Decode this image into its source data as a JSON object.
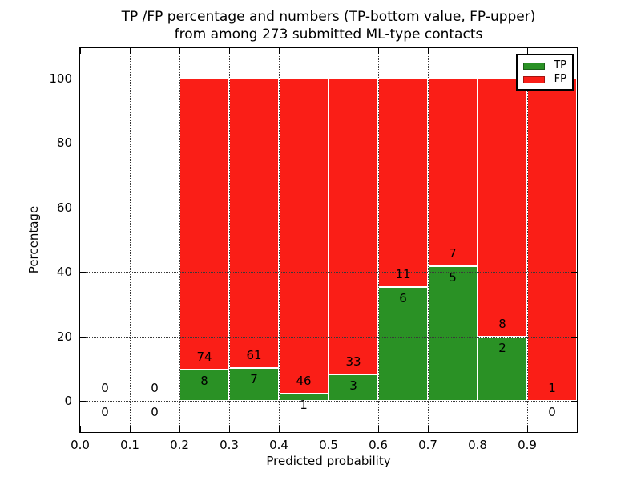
{
  "chart_data": {
    "type": "bar",
    "stacked": true,
    "title_line1": "TP /FP percentage and numbers (TP-bottom value, FP-upper)",
    "title_line2": "from among 273 submitted ML-type contacts",
    "xlabel": "Predicted probability",
    "ylabel": "Percentage",
    "xlim": [
      0.0,
      1.0
    ],
    "ylim": [
      -10,
      110
    ],
    "x_tick_values": [
      0.0,
      0.1,
      0.2,
      0.3,
      0.4,
      0.5,
      0.6,
      0.7,
      0.8,
      0.9
    ],
    "x_tick_labels": [
      "0.0",
      "0.1",
      "0.2",
      "0.3",
      "0.4",
      "0.5",
      "0.6",
      "0.7",
      "0.8",
      "0.9"
    ],
    "y_tick_values": [
      0,
      20,
      40,
      60,
      80,
      100
    ],
    "y_tick_labels": [
      "0",
      "20",
      "40",
      "60",
      "80",
      "100"
    ],
    "grid": "dotted",
    "colors": {
      "tp": "#2a9125",
      "fp": "#fa1e17",
      "bar_edge": "#ffffff"
    },
    "legend": {
      "position": "upper right",
      "items": [
        {
          "label": "TP",
          "color": "#2a9125"
        },
        {
          "label": "FP",
          "color": "#fa1e17"
        }
      ]
    },
    "bins": [
      {
        "x_start": 0.0,
        "x_end": 0.1,
        "tp_count": 0,
        "fp_count": 0,
        "tp_pct": 0,
        "fp_pct": 0,
        "has_bar": false
      },
      {
        "x_start": 0.1,
        "x_end": 0.2,
        "tp_count": 0,
        "fp_count": 0,
        "tp_pct": 0,
        "fp_pct": 0,
        "has_bar": false
      },
      {
        "x_start": 0.2,
        "x_end": 0.3,
        "tp_count": 8,
        "fp_count": 74,
        "tp_pct": 9.76,
        "fp_pct": 90.24,
        "has_bar": true
      },
      {
        "x_start": 0.3,
        "x_end": 0.4,
        "tp_count": 7,
        "fp_count": 61,
        "tp_pct": 10.29,
        "fp_pct": 89.71,
        "has_bar": true
      },
      {
        "x_start": 0.4,
        "x_end": 0.5,
        "tp_count": 1,
        "fp_count": 46,
        "tp_pct": 2.13,
        "fp_pct": 97.87,
        "has_bar": true
      },
      {
        "x_start": 0.5,
        "x_end": 0.6,
        "tp_count": 3,
        "fp_count": 33,
        "tp_pct": 8.33,
        "fp_pct": 91.67,
        "has_bar": true
      },
      {
        "x_start": 0.6,
        "x_end": 0.7,
        "tp_count": 6,
        "fp_count": 11,
        "tp_pct": 35.29,
        "fp_pct": 64.71,
        "has_bar": true
      },
      {
        "x_start": 0.7,
        "x_end": 0.8,
        "tp_count": 5,
        "fp_count": 7,
        "tp_pct": 41.67,
        "fp_pct": 58.33,
        "has_bar": true
      },
      {
        "x_start": 0.8,
        "x_end": 0.9,
        "tp_count": 2,
        "fp_count": 8,
        "tp_pct": 20.0,
        "fp_pct": 80.0,
        "has_bar": true
      },
      {
        "x_start": 0.9,
        "x_end": 1.0,
        "tp_count": 0,
        "fp_count": 1,
        "tp_pct": 0,
        "fp_pct": 100.0,
        "has_bar": true
      }
    ]
  }
}
